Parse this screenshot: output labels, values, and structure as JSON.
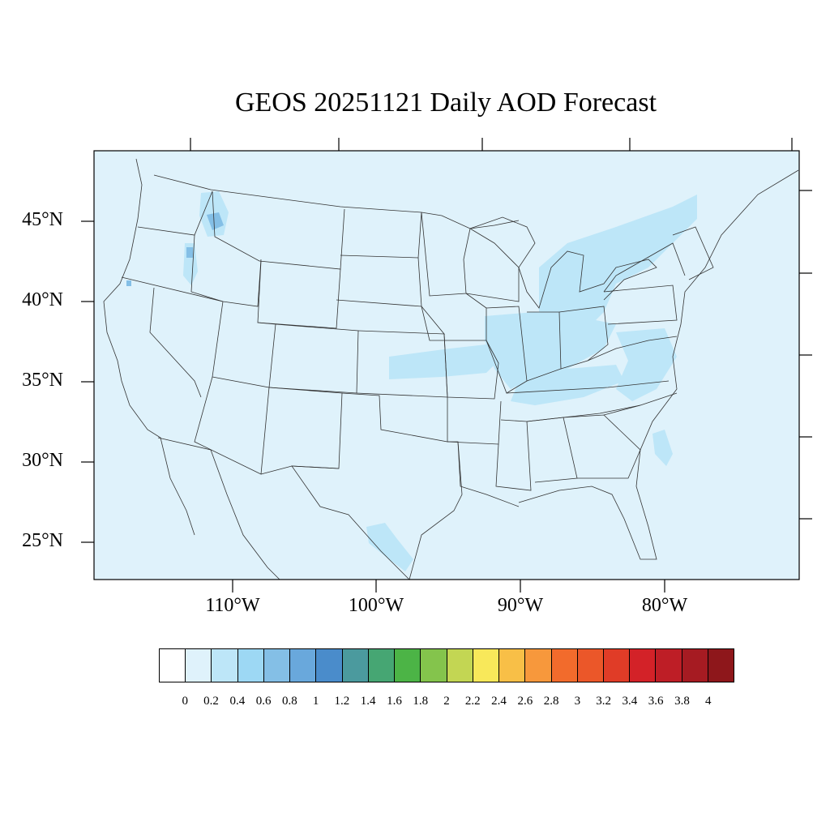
{
  "title": "GEOS 20251121 Daily AOD Forecast",
  "map": {
    "region": "Continental United States",
    "projection": "cylindrical equidistant",
    "ocean_land_fill": "#dff2fb",
    "border_color": "#000000",
    "lat_labels": [
      "45°N",
      "40°N",
      "35°N",
      "30°N",
      "25°N"
    ],
    "lon_labels": [
      "110°W",
      "100°W",
      "90°W",
      "80°W"
    ]
  },
  "colorbar": {
    "colors": [
      "#ffffff",
      "#dff2fb",
      "#bde6f8",
      "#9dd8f4",
      "#84bfe6",
      "#69a8dc",
      "#4a8ccb",
      "#4b9a9e",
      "#46a673",
      "#4cb446",
      "#84c44c",
      "#c3d653",
      "#f8e85a",
      "#f8bf47",
      "#f7983c",
      "#f26b2c",
      "#eb5729",
      "#e03c27",
      "#d32228",
      "#be1e26",
      "#a61b22",
      "#8e171b"
    ],
    "labels": [
      "0",
      "0.2",
      "0.4",
      "0.6",
      "0.8",
      "1",
      "1.2",
      "1.4",
      "1.6",
      "1.8",
      "2",
      "2.2",
      "2.4",
      "2.6",
      "2.8",
      "3",
      "3.2",
      "3.4",
      "3.6",
      "3.8",
      "4"
    ]
  }
}
